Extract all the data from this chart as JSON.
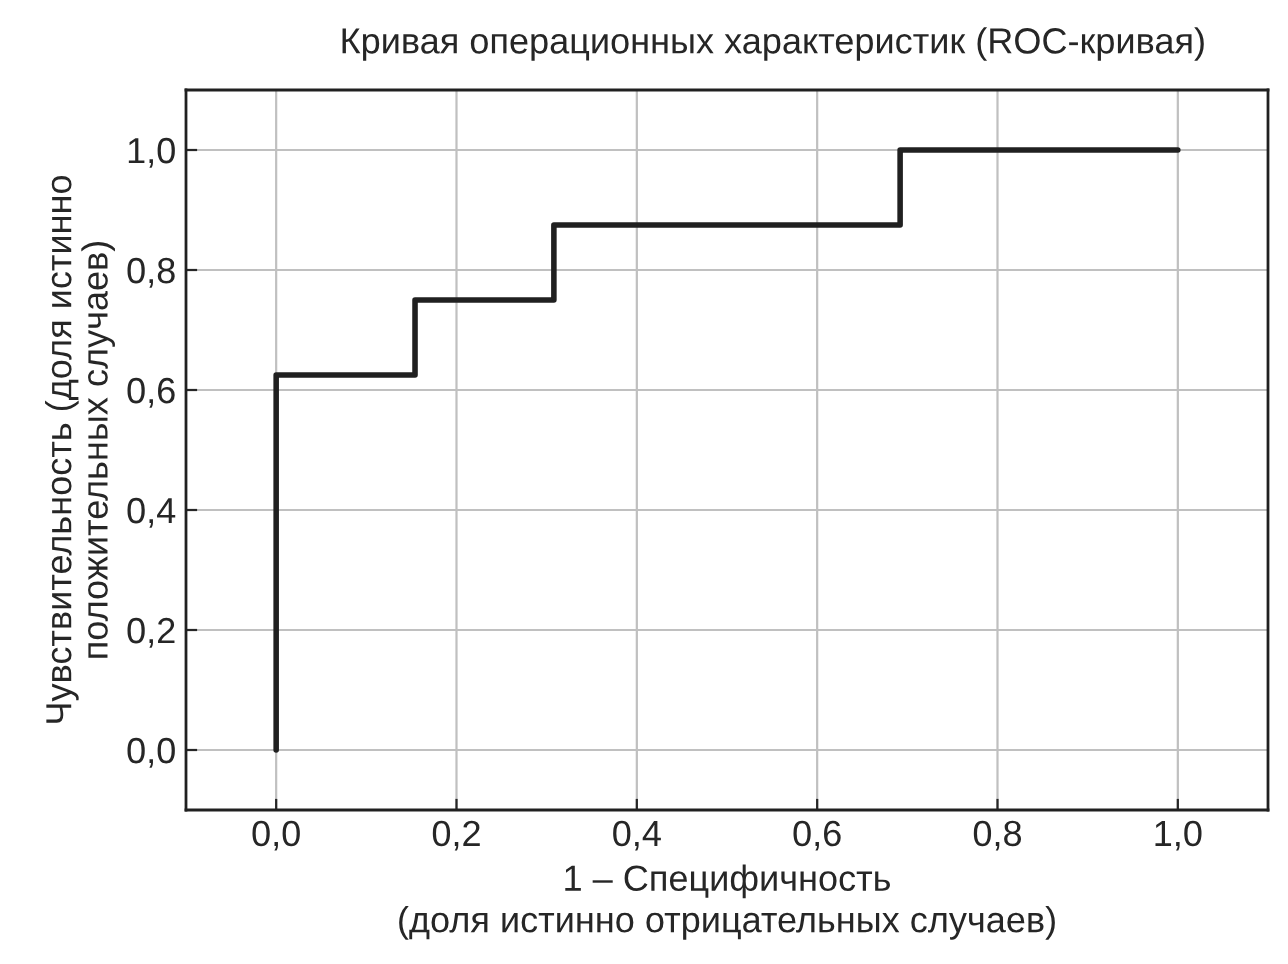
{
  "chart_data": {
    "type": "step",
    "title": "Кривая операционных характеристик (ROC-кривая)",
    "xlabel": "1 – Специфичность\n(доля истинно отрицательных случаев)",
    "ylabel": "Чувствительность (доля истинно\nположительных случаев)",
    "series": [
      {
        "color": "#202020",
        "x": [
          0,
          0,
          0.154,
          0.308,
          0.692,
          1.0
        ],
        "values": [
          0,
          0.625,
          0.75,
          0.875,
          1.0,
          1.0
        ]
      }
    ],
    "xlim": [
      -0.1,
      1.1
    ],
    "ylim": [
      -0.1,
      1.1
    ],
    "xticks": [
      {
        "value": 0,
        "label": "0,0"
      },
      {
        "value": 0.2,
        "label": "0,2"
      },
      {
        "value": 0.4,
        "label": "0,4"
      },
      {
        "value": 0.6,
        "label": "0,6"
      },
      {
        "value": 0.8,
        "label": "0,8"
      },
      {
        "value": 1.0,
        "label": "1,0"
      }
    ],
    "yticks": [
      {
        "value": 0,
        "label": "0,0"
      },
      {
        "value": 0.2,
        "label": "0,2"
      },
      {
        "value": 0.4,
        "label": "0,4"
      },
      {
        "value": 0.6,
        "label": "0,6"
      },
      {
        "value": 0.8,
        "label": "0,8"
      },
      {
        "value": 1.0,
        "label": "1,0"
      }
    ],
    "grid": true,
    "line_style": "solid"
  }
}
